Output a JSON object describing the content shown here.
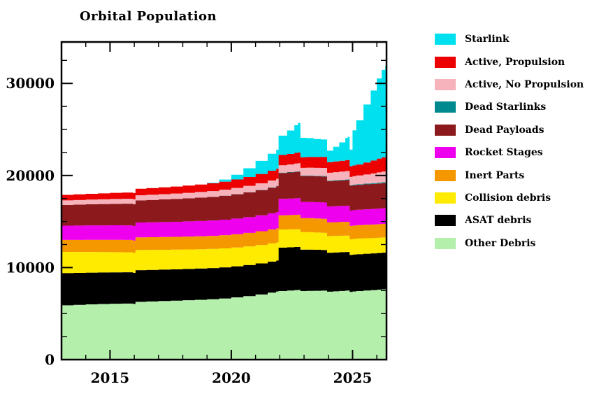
{
  "chart_data": {
    "type": "area",
    "stacked": true,
    "step": true,
    "title": "Orbital Population",
    "xlim": [
      2013.0,
      2026.4
    ],
    "ylim": [
      0,
      34500
    ],
    "x_major_ticks": [
      2015,
      2020,
      2025
    ],
    "x_tick_labels": [
      "2015",
      "2020",
      "2025"
    ],
    "x_minor_step": 1,
    "y_major_ticks": [
      0,
      10000,
      20000,
      30000
    ],
    "y_tick_labels": [
      "0",
      "10000",
      "20000",
      "30000"
    ],
    "y_minor_step": 2500,
    "grid": false,
    "legend_position": "right",
    "x": [
      2013.0,
      2013.5,
      2014.0,
      2014.5,
      2015.0,
      2015.5,
      2015.95,
      2016.05,
      2016.5,
      2017.0,
      2017.5,
      2018.0,
      2018.5,
      2019.0,
      2019.5,
      2020.0,
      2020.5,
      2021.0,
      2021.5,
      2021.85,
      2021.95,
      2022.3,
      2022.6,
      2022.75,
      2022.85,
      2023.1,
      2023.4,
      2023.7,
      2023.85,
      2023.95,
      2024.2,
      2024.45,
      2024.7,
      2024.8,
      2024.88,
      2025.0,
      2025.15,
      2025.45,
      2025.75,
      2026.0,
      2026.2,
      2026.35
    ],
    "series": [
      {
        "name": "Other Debris",
        "color": "#B4EFAC",
        "values": [
          5900,
          5950,
          6000,
          6040,
          6070,
          6090,
          6050,
          6280,
          6320,
          6360,
          6400,
          6450,
          6500,
          6560,
          6640,
          6760,
          6900,
          7080,
          7280,
          7400,
          7450,
          7500,
          7550,
          7570,
          7450,
          7470,
          7480,
          7490,
          7495,
          7380,
          7420,
          7460,
          7490,
          7500,
          7350,
          7400,
          7450,
          7500,
          7550,
          7600,
          7640,
          7660
        ]
      },
      {
        "name": "ASAT debris",
        "color": "#000000",
        "values": [
          3500,
          3470,
          3450,
          3430,
          3410,
          3395,
          3380,
          3440,
          3430,
          3420,
          3410,
          3400,
          3395,
          3390,
          3385,
          3380,
          3375,
          3370,
          3365,
          3360,
          4720,
          4700,
          4680,
          4670,
          4500,
          4480,
          4450,
          4420,
          4410,
          4230,
          4220,
          4210,
          4200,
          4195,
          4020,
          4015,
          4010,
          4000,
          3990,
          3980,
          3975,
          3970
        ]
      },
      {
        "name": "Collision debris",
        "color": "#FFEB00",
        "values": [
          2300,
          2270,
          2240,
          2210,
          2190,
          2170,
          2150,
          2190,
          2175,
          2155,
          2135,
          2115,
          2095,
          2075,
          2055,
          2035,
          2015,
          1995,
          1980,
          1970,
          1965,
          1950,
          1940,
          1935,
          1900,
          1890,
          1875,
          1860,
          1855,
          1810,
          1800,
          1790,
          1780,
          1775,
          1700,
          1698,
          1695,
          1685,
          1675,
          1665,
          1658,
          1650
        ]
      },
      {
        "name": "Inert Parts",
        "color": "#F59800",
        "values": [
          1300,
          1310,
          1320,
          1330,
          1340,
          1345,
          1345,
          1365,
          1370,
          1380,
          1390,
          1400,
          1410,
          1420,
          1435,
          1450,
          1470,
          1495,
          1515,
          1530,
          1540,
          1550,
          1560,
          1565,
          1530,
          1530,
          1530,
          1530,
          1530,
          1490,
          1495,
          1500,
          1505,
          1505,
          1450,
          1452,
          1455,
          1460,
          1465,
          1470,
          1472,
          1475
        ]
      },
      {
        "name": "Rocket Stages",
        "color": "#EE00EE",
        "values": [
          1550,
          1560,
          1570,
          1575,
          1580,
          1585,
          1585,
          1615,
          1620,
          1630,
          1640,
          1650,
          1660,
          1670,
          1685,
          1700,
          1715,
          1735,
          1755,
          1770,
          1780,
          1790,
          1800,
          1805,
          1760,
          1760,
          1765,
          1770,
          1770,
          1720,
          1725,
          1730,
          1735,
          1738,
          1670,
          1672,
          1675,
          1680,
          1685,
          1690,
          1692,
          1695
        ]
      },
      {
        "name": "Dead Payloads",
        "color": "#8C1A1C",
        "values": [
          2250,
          2270,
          2290,
          2310,
          2330,
          2350,
          2360,
          2410,
          2430,
          2455,
          2480,
          2505,
          2535,
          2565,
          2600,
          2640,
          2685,
          2730,
          2775,
          2805,
          2820,
          2840,
          2860,
          2870,
          2800,
          2810,
          2815,
          2820,
          2825,
          2750,
          2760,
          2770,
          2780,
          2785,
          2690,
          2695,
          2700,
          2710,
          2720,
          2730,
          2735,
          2740
        ]
      },
      {
        "name": "Dead Starlinks",
        "color": "#00898F",
        "values": [
          0,
          0,
          0,
          0,
          0,
          0,
          0,
          0,
          0,
          0,
          0,
          0,
          0,
          0,
          10,
          15,
          20,
          25,
          30,
          35,
          35,
          40,
          45,
          45,
          45,
          50,
          50,
          55,
          55,
          55,
          60,
          60,
          65,
          65,
          65,
          68,
          70,
          75,
          80,
          85,
          90,
          90
        ]
      },
      {
        "name": "Active, No Propulsion",
        "color": "#F6B3BC",
        "values": [
          500,
          505,
          510,
          520,
          530,
          535,
          540,
          550,
          560,
          570,
          580,
          595,
          610,
          625,
          645,
          665,
          690,
          720,
          750,
          770,
          800,
          830,
          860,
          870,
          850,
          860,
          870,
          880,
          885,
          860,
          880,
          900,
          920,
          925,
          900,
          925,
          950,
          1000,
          1060,
          1120,
          1160,
          1180
        ]
      },
      {
        "name": "Active, Propulsion",
        "color": "#EC0000",
        "values": [
          600,
          615,
          630,
          645,
          660,
          675,
          690,
          710,
          725,
          745,
          765,
          790,
          815,
          845,
          880,
          920,
          965,
          1015,
          1065,
          1100,
          1120,
          1140,
          1160,
          1170,
          1150,
          1160,
          1170,
          1180,
          1185,
          1150,
          1165,
          1180,
          1195,
          1200,
          1160,
          1172,
          1185,
          1300,
          1400,
          1500,
          1550,
          1580
        ]
      },
      {
        "name": "Starlink",
        "color": "#00E0EE",
        "values": [
          0,
          0,
          0,
          0,
          0,
          0,
          0,
          0,
          0,
          0,
          0,
          0,
          0,
          60,
          220,
          520,
          950,
          1430,
          1850,
          2050,
          2100,
          2550,
          3000,
          3200,
          2100,
          2050,
          1950,
          1900,
          1900,
          1250,
          1600,
          2000,
          2400,
          2500,
          1800,
          3800,
          4800,
          6300,
          7600,
          8700,
          9500,
          9900
        ]
      }
    ],
    "legend": [
      {
        "label": "Starlink",
        "color": "#00E0EE"
      },
      {
        "label": "Active, Propulsion",
        "color": "#EC0000"
      },
      {
        "label": "Active, No Propulsion",
        "color": "#F6B3BC"
      },
      {
        "label": "Dead Starlinks",
        "color": "#00898F"
      },
      {
        "label": "Dead Payloads",
        "color": "#8C1A1C"
      },
      {
        "label": "Rocket Stages",
        "color": "#EE00EE"
      },
      {
        "label": "Inert Parts",
        "color": "#F59800"
      },
      {
        "label": "Collision debris",
        "color": "#FFEB00"
      },
      {
        "label": "ASAT debris",
        "color": "#000000"
      },
      {
        "label": "Other Debris",
        "color": "#B4EFAC"
      }
    ]
  }
}
